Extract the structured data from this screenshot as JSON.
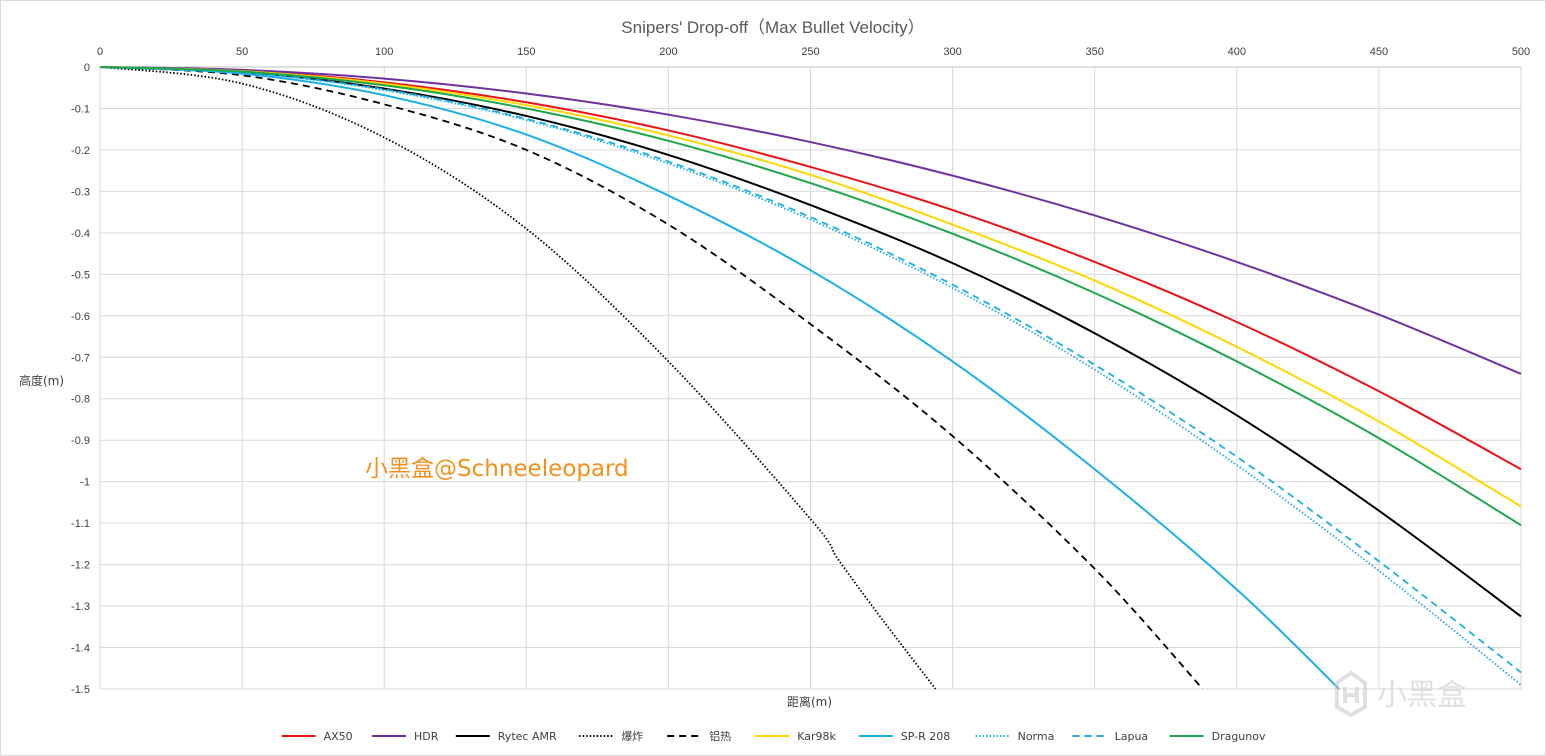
{
  "chart_data": {
    "type": "line",
    "title": "Snipers' Drop-off（Max Bullet Velocity）",
    "xlabel": "距离(m)",
    "ylabel": "高度(m)",
    "xlim": [
      0,
      500
    ],
    "ylim": [
      -1.5,
      0
    ],
    "x_ticks": [
      "0",
      "50",
      "100",
      "150",
      "200",
      "250",
      "300",
      "350",
      "400",
      "450",
      "500"
    ],
    "y_ticks": [
      "0",
      "-0.1",
      "-0.2",
      "-0.3",
      "-0.4",
      "-0.5",
      "-0.6",
      "-0.7",
      "-0.8",
      "-0.9",
      "-1",
      "-1.1",
      "-1.2",
      "-1.3",
      "-1.4",
      "-1.5"
    ],
    "x_axis_position": "top",
    "grid": true,
    "legend_position": "bottom",
    "series": [
      {
        "name": "AX50",
        "color": "#e81416",
        "style": "solid",
        "x": [
          0,
          50,
          100,
          150,
          200,
          250,
          300,
          350,
          400,
          450,
          500
        ],
        "y": [
          0,
          -0.009,
          -0.037,
          -0.085,
          -0.153,
          -0.241,
          -0.345,
          -0.47,
          -0.615,
          -0.782,
          -0.97
        ]
      },
      {
        "name": "HDR",
        "color": "#7030a0",
        "style": "solid",
        "x": [
          0,
          50,
          100,
          150,
          200,
          250,
          300,
          350,
          400,
          450,
          500
        ],
        "y": [
          0,
          -0.007,
          -0.028,
          -0.064,
          -0.115,
          -0.181,
          -0.262,
          -0.358,
          -0.47,
          -0.597,
          -0.74
        ]
      },
      {
        "name": "Rytec AMR",
        "color": "#000000",
        "style": "solid",
        "x": [
          0,
          50,
          100,
          150,
          200,
          250,
          300,
          350,
          400,
          450,
          500
        ],
        "y": [
          0,
          -0.012,
          -0.052,
          -0.118,
          -0.212,
          -0.333,
          -0.473,
          -0.642,
          -0.84,
          -1.07,
          -1.325
        ]
      },
      {
        "name": "爆炸",
        "color": "#000000",
        "style": "dotted",
        "x": [
          0,
          50,
          100,
          150,
          200,
          250,
          260,
          275,
          294
        ],
        "y": [
          0,
          -0.04,
          -0.17,
          -0.39,
          -0.71,
          -1.09,
          -1.19,
          -1.33,
          -1.5
        ]
      },
      {
        "name": "铝热",
        "color": "#000000",
        "style": "dashed",
        "x": [
          0,
          50,
          100,
          150,
          200,
          250,
          300,
          350,
          388
        ],
        "y": [
          0,
          -0.02,
          -0.09,
          -0.2,
          -0.38,
          -0.62,
          -0.89,
          -1.21,
          -1.5
        ]
      },
      {
        "name": "Kar98k",
        "color": "#ffd700",
        "style": "solid",
        "x": [
          0,
          50,
          100,
          150,
          200,
          250,
          300,
          350,
          400,
          450,
          500
        ],
        "y": [
          0,
          -0.01,
          -0.04,
          -0.092,
          -0.165,
          -0.26,
          -0.38,
          -0.515,
          -0.675,
          -0.855,
          -1.06
        ]
      },
      {
        "name": "SP-R 208",
        "color": "#1aafe6",
        "style": "solid",
        "x": [
          0,
          50,
          100,
          150,
          200,
          250,
          300,
          350,
          400,
          436
        ],
        "y": [
          0,
          -0.016,
          -0.068,
          -0.163,
          -0.31,
          -0.49,
          -0.71,
          -0.97,
          -1.26,
          -1.5
        ]
      },
      {
        "name": "Norma",
        "color": "#1aafe6",
        "style": "dotted",
        "x": [
          0,
          50,
          100,
          150,
          200,
          250,
          300,
          350,
          400,
          450,
          500
        ],
        "y": [
          0,
          -0.013,
          -0.056,
          -0.128,
          -0.233,
          -0.368,
          -0.533,
          -0.73,
          -0.96,
          -1.215,
          -1.49
        ]
      },
      {
        "name": "Lapua",
        "color": "#1aafe6",
        "style": "dashed",
        "x": [
          0,
          50,
          100,
          150,
          200,
          250,
          300,
          350,
          400,
          450,
          500
        ],
        "y": [
          0,
          -0.013,
          -0.054,
          -0.125,
          -0.228,
          -0.362,
          -0.525,
          -0.718,
          -0.94,
          -1.192,
          -1.46
        ]
      },
      {
        "name": "Dragunov",
        "color": "#1ea64a",
        "style": "solid",
        "x": [
          0,
          50,
          100,
          150,
          200,
          250,
          300,
          350,
          400,
          450,
          500
        ],
        "y": [
          0,
          -0.011,
          -0.044,
          -0.1,
          -0.178,
          -0.28,
          -0.402,
          -0.545,
          -0.71,
          -0.895,
          -1.105
        ]
      }
    ]
  },
  "watermark_text": "小黑盒@Schneeleopard",
  "brand_logo_text": "小黑盒"
}
